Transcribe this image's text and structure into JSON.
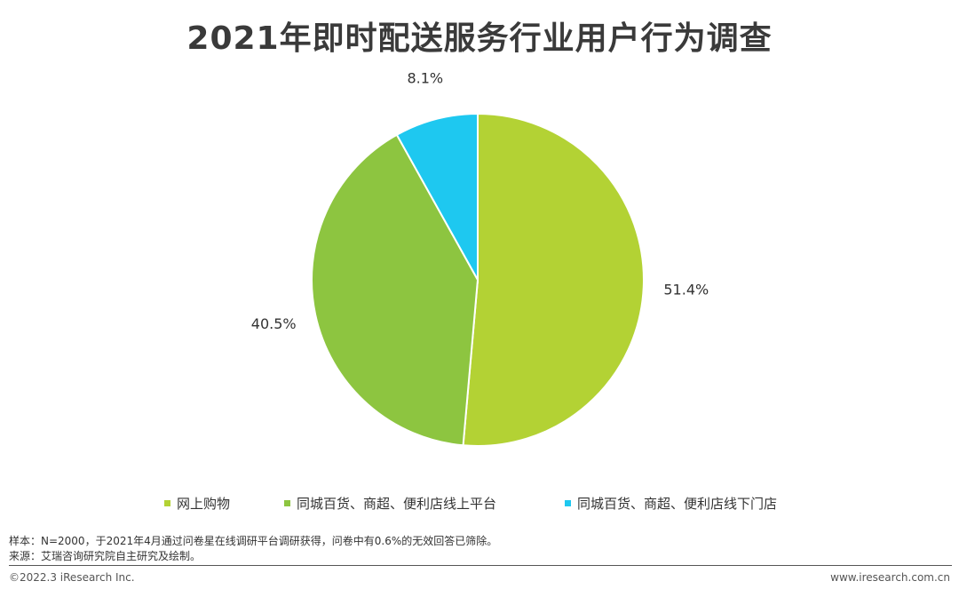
{
  "chart_data": {
    "type": "pie",
    "title": "2021年即时配送服务行业用户行为调查",
    "slices": [
      {
        "label": "网上购物",
        "value": 51.4,
        "display": "51.4%",
        "color": "#b3d234"
      },
      {
        "label": "同城百货、商超、便利店线上平台",
        "value": 40.5,
        "display": "40.5%",
        "color": "#8dc540"
      },
      {
        "label": "同城百货、商超、便利店线下门店",
        "value": 8.1,
        "display": "8.1%",
        "color": "#1ec8f0"
      }
    ],
    "start_angle_deg": 0,
    "direction": "clockwise",
    "legend_position": "bottom"
  },
  "notes": {
    "sample": "样本：N=2000，于2021年4月通过问卷星在线调研平台调研获得，问卷中有0.6%的无效回答已筛除。",
    "source": "来源：艾瑞咨询研究院自主研究及绘制。"
  },
  "footer": {
    "copyright": "©2022.3 iResearch Inc.",
    "website": "www.iresearch.com.cn"
  }
}
